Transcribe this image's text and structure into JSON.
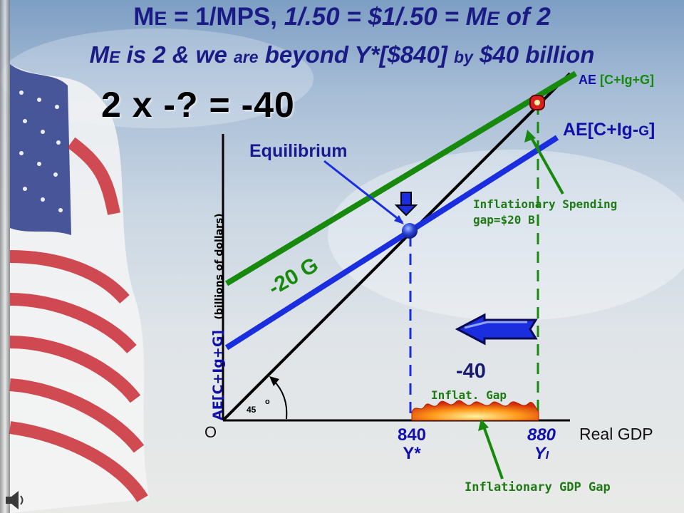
{
  "title": {
    "line1_me": "M",
    "line1_me_sub": "E",
    "line1_rest": " = 1/MPS, ",
    "line1_italic": "1/.50 = $1/.50 = M",
    "line1_italic_sub": "E",
    "line1_end": " of 2",
    "line2_me": "M",
    "line2_me_sub": "E",
    "line2_a": " is 2 & we ",
    "line2_are": "are",
    "line2_b": " beyond Y*[$840] ",
    "line2_by": "by",
    "line2_c": " $40 billion"
  },
  "equation": "2  x  -?  =  -40",
  "chart_data": {
    "type": "line",
    "xlabel": "Real GDP",
    "ylabel": "AE[C+Ig+G]",
    "ylabel_note": "(billions of dollars)",
    "origin_label": "O",
    "angle_label": "45",
    "angle_unit": "o",
    "series": [
      {
        "name": "AE [C+Ig+G]",
        "color": "#178a0e"
      },
      {
        "name": "AE[C+Ig-G]",
        "color": "#1a2ee0"
      },
      {
        "name": "45-degree line",
        "color": "#000000"
      }
    ],
    "x_ticks": [
      {
        "value": "840",
        "label": "Y*"
      },
      {
        "value": "880",
        "label": "Y",
        "sub": "I"
      }
    ]
  },
  "labels": {
    "ae_green_a": "AE ",
    "ae_green_b": "[C+Ig+G]",
    "ae_blue": "AE[C+Ig-",
    "ae_blue_g": "G",
    "ae_blue_end": "]",
    "equilibrium": "Equilibrium",
    "minus_20g": "-20 G",
    "inflationary_spending_1": "Inflationary Spending",
    "inflationary_spending_2": "gap=$20 B",
    "minus_40": "-40",
    "inflat_gap": "Inflat. Gap",
    "inflationary_gdp_gap": "Inflationary GDP Gap"
  },
  "colors": {
    "title": "#1b1b86",
    "green": "#178a0e",
    "blue": "#1a2ee0",
    "dark_green_text": "#1e7a14",
    "navy_text": "#1111aa"
  }
}
